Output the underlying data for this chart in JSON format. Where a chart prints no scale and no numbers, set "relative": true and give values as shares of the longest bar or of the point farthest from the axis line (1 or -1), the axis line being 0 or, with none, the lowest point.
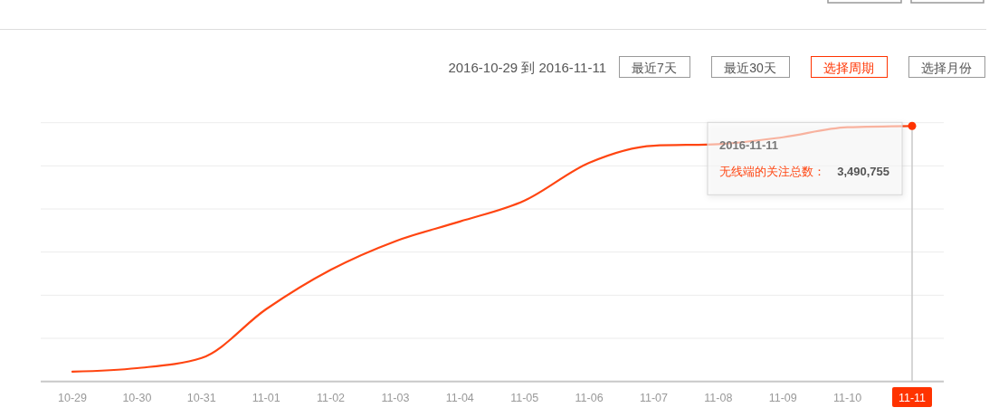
{
  "chart_data": {
    "type": "line",
    "subtitle": "2016-10-29 到 2016-11-11",
    "categories": [
      "10-29",
      "10-30",
      "10-31",
      "11-01",
      "11-02",
      "11-03",
      "11-04",
      "11-05",
      "11-06",
      "11-07",
      "11-08",
      "11-09",
      "11-10",
      "11-11"
    ],
    "series": [
      {
        "name": "无线端的关注总数：",
        "color": "#ff4511",
        "values": [
          0.038,
          0.052,
          0.092,
          0.283,
          0.437,
          0.549,
          0.626,
          0.708,
          0.856,
          0.923,
          0.929,
          0.956,
          0.995,
          1
        ]
      }
    ],
    "relative": true,
    "grid": "y",
    "ref_lines": [
      {
        "axis": "x",
        "value": "11-11",
        "color": "#c8c8c8"
      }
    ],
    "annotations": [
      "最近7天",
      "最近30天",
      "选择周期",
      "选择月份",
      "2016-11-11",
      "3,490,755"
    ]
  }
}
